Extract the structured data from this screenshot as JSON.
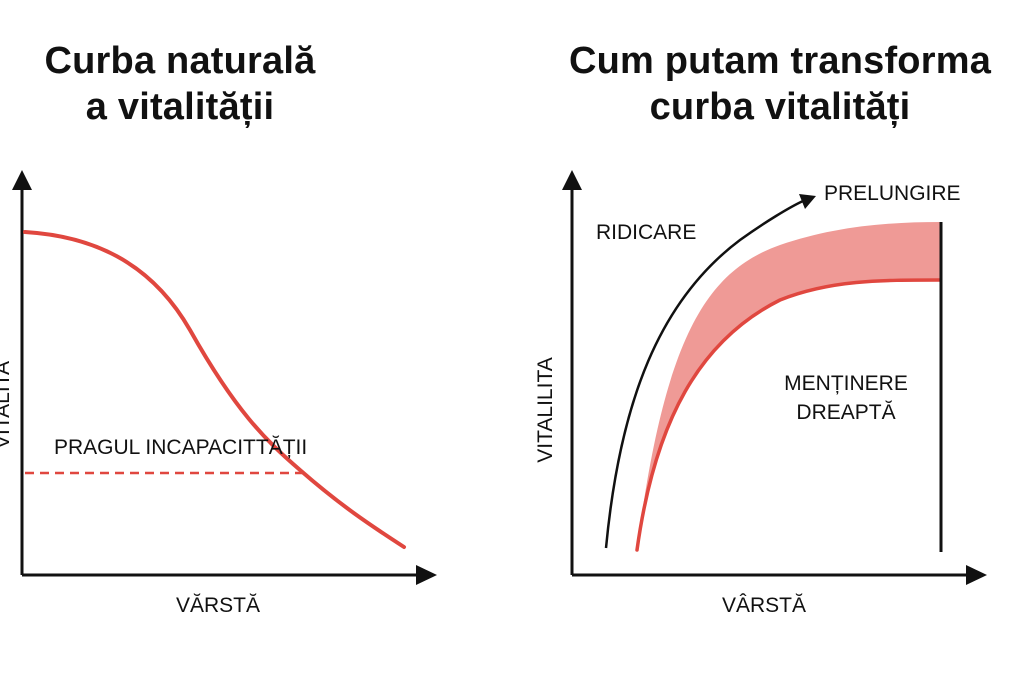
{
  "left_panel": {
    "title_line1": "Curba naturală",
    "title_line2": "a vitalității",
    "y_axis_label": "VITALITA",
    "x_axis_label": "VĂRSTĂ",
    "threshold_label": "PRAGUL INCAPACITTĂȚII"
  },
  "right_panel": {
    "title_line1": "Cum putam transforma",
    "title_line2": "curba vitalități",
    "y_axis_label": "VITALILITA",
    "x_axis_label": "VÂRSTĂ",
    "arrow_label_raise": "RIDICARE",
    "arrow_label_extend": "PRELUNGIRE",
    "maintain_line1": "MENȚINERE",
    "maintain_line2": "DREAPTĂ"
  },
  "colors": {
    "curve": "#e0473f",
    "band": "#ef9a96",
    "axis": "#111111"
  }
}
